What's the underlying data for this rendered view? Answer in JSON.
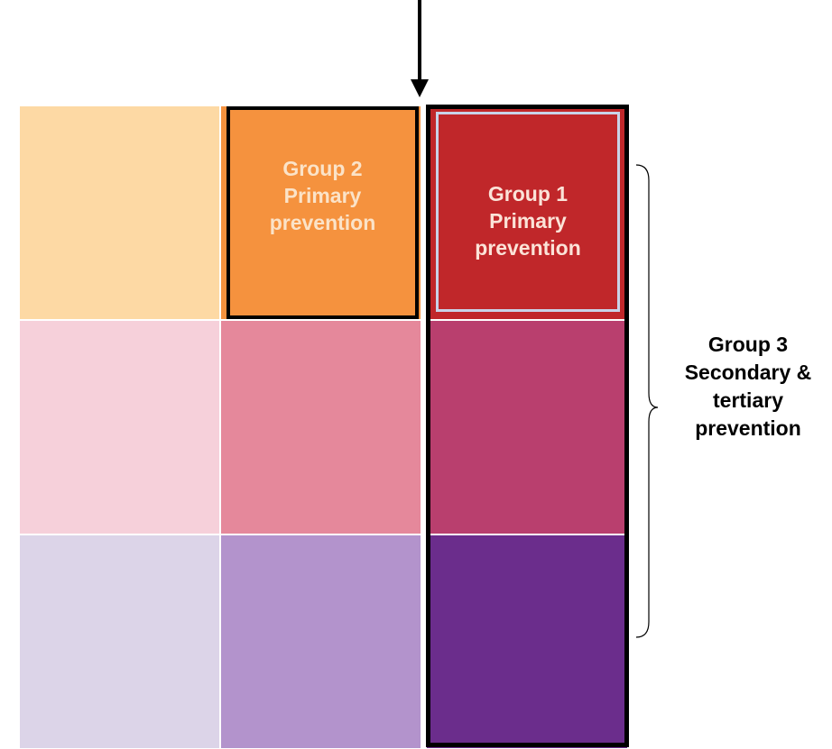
{
  "grid": {
    "colors": {
      "r1c1": "#fdd9a4",
      "r1c2": "#f5923e",
      "r1c3": "#c0272a",
      "r2c1": "#f6d0da",
      "r2c2": "#e5889b",
      "r2c3": "#b93f6e",
      "r3c1": "#dcd4e8",
      "r3c2": "#b393cc",
      "r3c3": "#6b2d8c"
    }
  },
  "group2": {
    "line1": "Group 2",
    "line2": "Primary",
    "line3": "prevention"
  },
  "group1": {
    "line1": "Group 1",
    "line2": "Primary",
    "line3": "prevention"
  },
  "group3": {
    "line1": "Group 3",
    "line2": "Secondary &",
    "line3": "tertiary",
    "line4": "prevention"
  },
  "icons": {
    "arrow": "arrow-down-icon",
    "brace": "right-brace-icon"
  }
}
